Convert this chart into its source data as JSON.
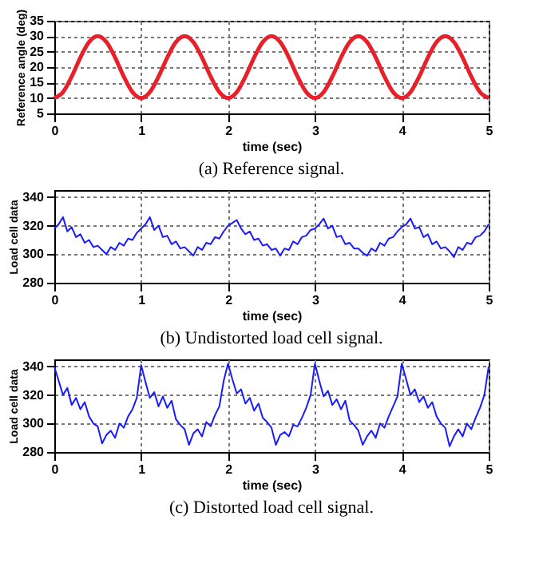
{
  "chart_data": [
    {
      "type": "line",
      "title": "(a) Reference signal.",
      "xlabel": "time (sec)",
      "ylabel": "Reference angle (deg)",
      "xlim": [
        0,
        5
      ],
      "xticks": [
        0,
        1,
        2,
        3,
        4,
        5
      ],
      "ylim": [
        5,
        35
      ],
      "yticks": [
        5,
        10,
        15,
        20,
        25,
        30,
        35
      ],
      "grid": true,
      "line_style": "solid",
      "x": [
        0,
        0.1,
        0.2,
        0.3,
        0.4,
        0.5,
        0.6,
        0.7,
        0.8,
        0.9,
        1,
        1.1,
        1.2,
        1.3,
        1.4,
        1.5,
        1.6,
        1.7,
        1.8,
        1.9,
        2,
        2.1,
        2.2,
        2.3,
        2.4,
        2.5,
        2.6,
        2.7,
        2.8,
        2.9,
        3,
        3.1,
        3.2,
        3.3,
        3.4,
        3.5,
        3.6,
        3.7,
        3.8,
        3.9,
        4,
        4.1,
        4.2,
        4.3,
        4.4,
        4.5,
        4.6,
        4.7,
        4.8,
        4.9,
        5
      ],
      "series": [
        {
          "color": "#e8202a",
          "values": [
            10,
            11.9,
            16.9,
            23.1,
            28.1,
            30,
            28.1,
            23.1,
            16.9,
            11.9,
            10,
            11.9,
            16.9,
            23.1,
            28.1,
            30,
            28.1,
            23.1,
            16.9,
            11.9,
            10,
            11.9,
            16.9,
            23.1,
            28.1,
            30,
            28.1,
            23.1,
            16.9,
            11.9,
            10,
            11.9,
            16.9,
            23.1,
            28.1,
            30,
            28.1,
            23.1,
            16.9,
            11.9,
            10,
            11.9,
            16.9,
            23.1,
            28.1,
            30,
            28.1,
            23.1,
            16.9,
            11.9,
            10
          ]
        }
      ]
    },
    {
      "type": "line",
      "title": "(b) Undistorted load cell signal.",
      "xlabel": "time (sec)",
      "ylabel": "Load cell data",
      "xlim": [
        0,
        5
      ],
      "xticks": [
        0,
        1,
        2,
        3,
        4,
        5
      ],
      "ylim": [
        280,
        345
      ],
      "yticks": [
        280,
        300,
        320,
        340
      ],
      "grid": true,
      "line_style": "solid",
      "x": [
        0,
        0.05,
        0.1,
        0.15,
        0.2,
        0.25,
        0.3,
        0.35,
        0.4,
        0.45,
        0.5,
        0.55,
        0.6,
        0.65,
        0.7,
        0.75,
        0.8,
        0.85,
        0.9,
        0.95,
        1,
        1.05,
        1.1,
        1.15,
        1.2,
        1.25,
        1.3,
        1.35,
        1.4,
        1.45,
        1.5,
        1.55,
        1.6,
        1.65,
        1.7,
        1.75,
        1.8,
        1.85,
        1.9,
        1.95,
        2,
        2.05,
        2.1,
        2.15,
        2.2,
        2.25,
        2.3,
        2.35,
        2.4,
        2.45,
        2.5,
        2.55,
        2.6,
        2.65,
        2.7,
        2.75,
        2.8,
        2.85,
        2.9,
        2.95,
        3,
        3.05,
        3.1,
        3.15,
        3.2,
        3.25,
        3.3,
        3.35,
        3.4,
        3.45,
        3.5,
        3.55,
        3.6,
        3.65,
        3.7,
        3.75,
        3.8,
        3.85,
        3.9,
        3.95,
        4,
        4.05,
        4.1,
        4.15,
        4.2,
        4.25,
        4.3,
        4.35,
        4.4,
        4.45,
        4.5,
        4.55,
        4.6,
        4.65,
        4.7,
        4.75,
        4.8,
        4.85,
        4.9,
        4.95,
        5
      ],
      "series": [
        {
          "color": "#1a1aff",
          "values": [
            318,
            321,
            326,
            316,
            319,
            312,
            314,
            308,
            310,
            305,
            306,
            303,
            300,
            305,
            303,
            308,
            306,
            311,
            310,
            315,
            318,
            321,
            326,
            317,
            320,
            312,
            313,
            307,
            309,
            304,
            305,
            302,
            299,
            305,
            303,
            308,
            307,
            312,
            311,
            316,
            320,
            322,
            324,
            318,
            314,
            316,
            310,
            311,
            306,
            307,
            303,
            304,
            299,
            304,
            303,
            309,
            307,
            312,
            313,
            317,
            318,
            321,
            325,
            318,
            320,
            312,
            313,
            307,
            308,
            304,
            304,
            301,
            299,
            304,
            302,
            308,
            306,
            311,
            312,
            316,
            319,
            321,
            325,
            318,
            319,
            312,
            314,
            307,
            309,
            304,
            305,
            302,
            298,
            305,
            303,
            308,
            307,
            312,
            313,
            316,
            321
          ]
        }
      ]
    },
    {
      "type": "line",
      "title": "(c) Distorted load cell signal.",
      "xlabel": "time (sec)",
      "ylabel": "Load cell data",
      "xlim": [
        0,
        5
      ],
      "xticks": [
        0,
        1,
        2,
        3,
        4,
        5
      ],
      "ylim": [
        280,
        345
      ],
      "yticks": [
        280,
        300,
        320,
        340
      ],
      "grid": true,
      "line_style": "solid",
      "x": [
        0,
        0.05,
        0.1,
        0.15,
        0.2,
        0.25,
        0.3,
        0.35,
        0.4,
        0.45,
        0.5,
        0.55,
        0.6,
        0.65,
        0.7,
        0.75,
        0.8,
        0.85,
        0.9,
        0.95,
        1,
        1.05,
        1.1,
        1.15,
        1.2,
        1.25,
        1.3,
        1.35,
        1.4,
        1.45,
        1.5,
        1.55,
        1.6,
        1.65,
        1.7,
        1.75,
        1.8,
        1.85,
        1.9,
        1.95,
        2,
        2.05,
        2.1,
        2.15,
        2.2,
        2.25,
        2.3,
        2.35,
        2.4,
        2.45,
        2.5,
        2.55,
        2.6,
        2.65,
        2.7,
        2.75,
        2.8,
        2.85,
        2.9,
        2.95,
        3,
        3.05,
        3.1,
        3.15,
        3.2,
        3.25,
        3.3,
        3.35,
        3.4,
        3.45,
        3.5,
        3.55,
        3.6,
        3.65,
        3.7,
        3.75,
        3.8,
        3.85,
        3.9,
        3.95,
        4,
        4.05,
        4.1,
        4.15,
        4.2,
        4.25,
        4.3,
        4.35,
        4.4,
        4.45,
        4.5,
        4.55,
        4.6,
        4.65,
        4.7,
        4.75,
        4.8,
        4.85,
        4.9,
        4.95,
        5
      ],
      "series": [
        {
          "color": "#1a1aff",
          "values": [
            340,
            330,
            320,
            325,
            313,
            318,
            310,
            315,
            305,
            300,
            298,
            286,
            292,
            295,
            290,
            300,
            297,
            305,
            310,
            318,
            341,
            329,
            318,
            322,
            312,
            319,
            311,
            316,
            303,
            299,
            296,
            285,
            293,
            296,
            291,
            301,
            298,
            306,
            312,
            330,
            342,
            331,
            321,
            324,
            314,
            318,
            309,
            314,
            304,
            301,
            297,
            285,
            292,
            294,
            291,
            299,
            298,
            304,
            311,
            320,
            342,
            330,
            319,
            323,
            313,
            317,
            310,
            316,
            302,
            299,
            295,
            285,
            291,
            295,
            290,
            300,
            297,
            305,
            312,
            319,
            342,
            331,
            320,
            324,
            315,
            319,
            311,
            315,
            305,
            300,
            297,
            284,
            291,
            296,
            291,
            300,
            296,
            304,
            311,
            320,
            340
          ]
        }
      ]
    }
  ]
}
